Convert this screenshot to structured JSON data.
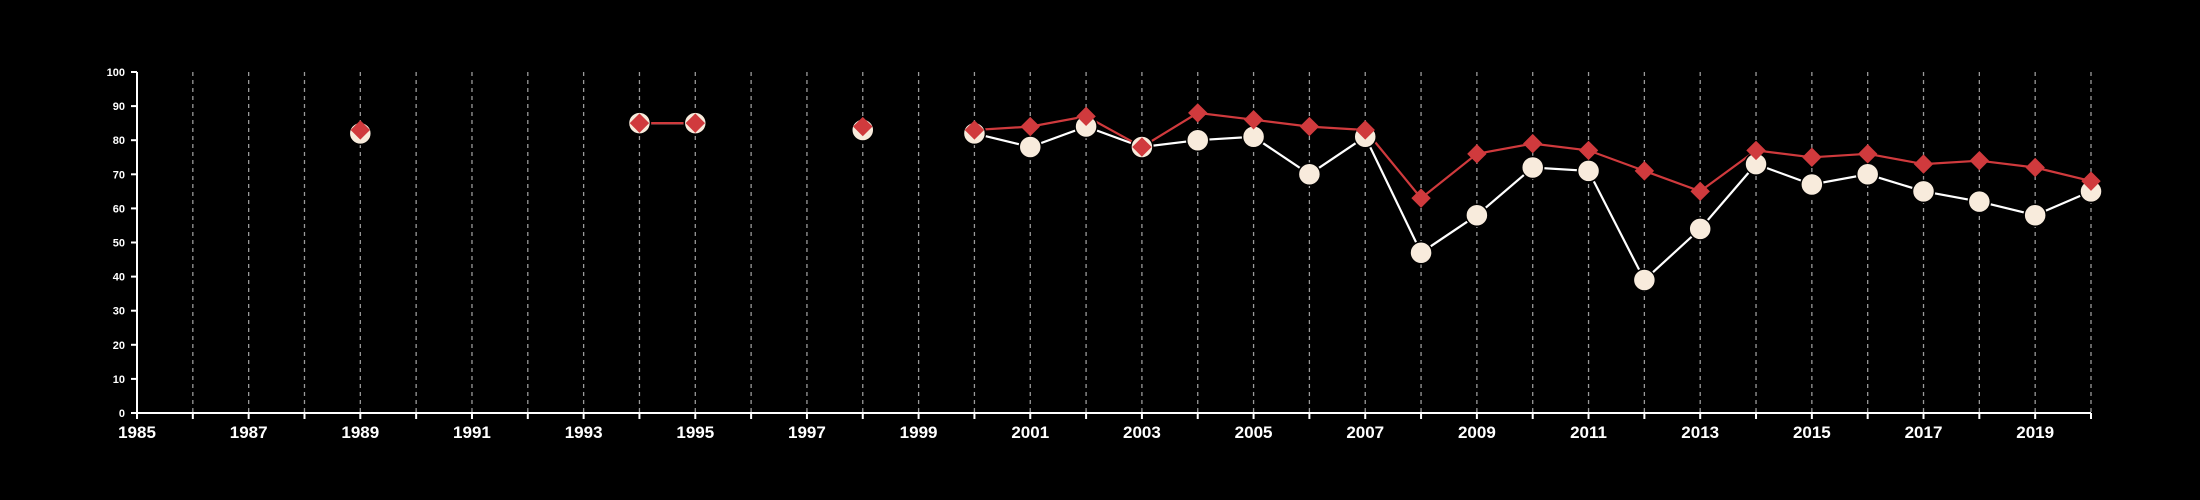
{
  "colors": {
    "background": "#000000",
    "axis": "#ffffff",
    "grid": "#9a9a9a",
    "series_white_fill": "#f8ebdc",
    "series_white_line": "#ffffff",
    "series_red": "#d03a3d"
  },
  "chart_data": {
    "type": "line",
    "title": "",
    "xlabel": "",
    "ylabel": "",
    "xlim": [
      1985,
      2020
    ],
    "ylim": [
      0,
      100
    ],
    "x_tick_labels": [
      "1985",
      "1987",
      "1989",
      "1991",
      "1993",
      "1995",
      "1997",
      "1999",
      "2001",
      "2003",
      "2005",
      "2007",
      "2009",
      "2011",
      "2013",
      "2015",
      "2017",
      "2019"
    ],
    "y_tick_labels": [
      "0",
      "10",
      "20",
      "30",
      "40",
      "50",
      "60",
      "70",
      "80",
      "90",
      "100"
    ],
    "grid": "vertical dashed lines at every year",
    "legend": "none",
    "series": [
      {
        "marker": "circle",
        "color": "#f8ebdc",
        "points": [
          [
            1989,
            82
          ],
          [
            1994,
            85
          ],
          [
            1995,
            85
          ],
          [
            1998,
            83
          ],
          [
            2000,
            82
          ],
          [
            2001,
            78
          ],
          [
            2002,
            84
          ],
          [
            2003,
            78
          ],
          [
            2004,
            80
          ],
          [
            2005,
            81
          ],
          [
            2006,
            70
          ],
          [
            2007,
            81
          ],
          [
            2008,
            47
          ],
          [
            2009,
            58
          ],
          [
            2010,
            72
          ],
          [
            2011,
            71
          ],
          [
            2012,
            39
          ],
          [
            2013,
            54
          ],
          [
            2014,
            73
          ],
          [
            2015,
            67
          ],
          [
            2016,
            70
          ],
          [
            2017,
            65
          ],
          [
            2018,
            62
          ],
          [
            2019,
            58
          ],
          [
            2020,
            65
          ]
        ]
      },
      {
        "marker": "diamond",
        "color": "#d03a3d",
        "points": [
          [
            1989,
            83
          ],
          [
            1994,
            85
          ],
          [
            1995,
            85
          ],
          [
            1998,
            84
          ],
          [
            2000,
            83
          ],
          [
            2001,
            84
          ],
          [
            2002,
            87
          ],
          [
            2003,
            78
          ],
          [
            2004,
            88
          ],
          [
            2005,
            86
          ],
          [
            2006,
            84
          ],
          [
            2007,
            83
          ],
          [
            2008,
            63
          ],
          [
            2009,
            76
          ],
          [
            2010,
            79
          ],
          [
            2011,
            77
          ],
          [
            2012,
            71
          ],
          [
            2013,
            65
          ],
          [
            2014,
            77
          ],
          [
            2015,
            75
          ],
          [
            2016,
            76
          ],
          [
            2017,
            73
          ],
          [
            2018,
            74
          ],
          [
            2019,
            72
          ],
          [
            2020,
            68
          ]
        ]
      }
    ]
  }
}
